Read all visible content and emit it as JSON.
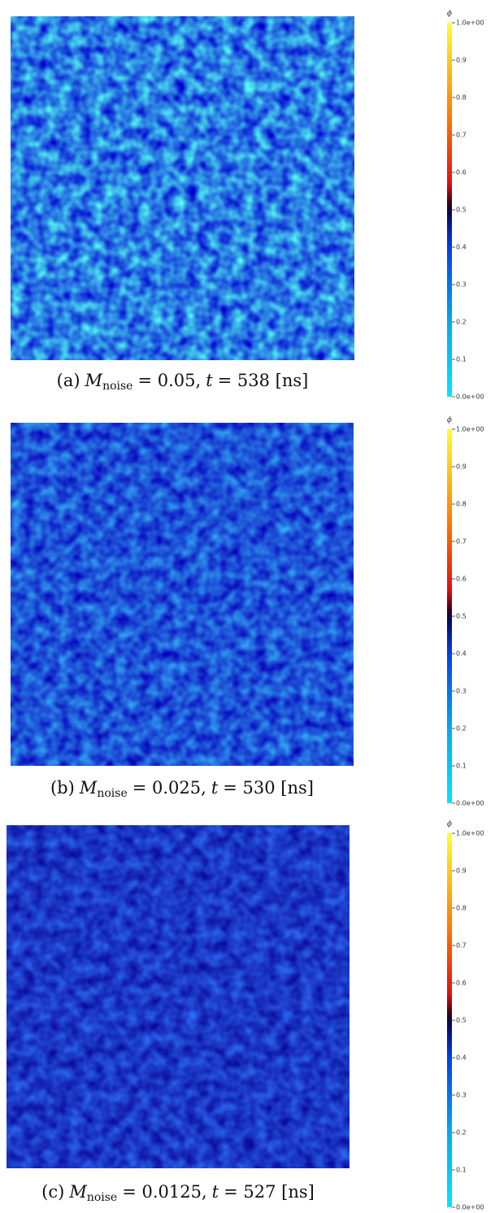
{
  "panels": [
    {
      "caption": {
        "label": "(a)",
        "var": "M",
        "sub": "noise",
        "rest": "= 0.05,",
        "var2": "t",
        "rest2": "= 538 [ns]"
      },
      "colorbar": {
        "title": "ϕ",
        "ticks": [
          {
            "value": 0,
            "label": "0.0e+00"
          },
          0.1,
          0.2,
          0.3,
          0.4,
          0.5,
          0.6,
          0.7,
          0.8,
          0.9,
          {
            "value": 1,
            "label": "1.0e+00"
          }
        ]
      }
    },
    {
      "caption": {
        "label": "(b)",
        "var": "M",
        "sub": "noise",
        "rest": "= 0.025,",
        "var2": "t",
        "rest2": "= 530 [ns]"
      },
      "colorbar": {
        "title": "ϕ",
        "ticks": [
          {
            "value": 0,
            "label": "0.0e+00"
          },
          0.1,
          0.2,
          0.3,
          0.4,
          0.5,
          0.6,
          0.7,
          0.8,
          0.9,
          {
            "value": 1,
            "label": "1.0e+00"
          }
        ]
      }
    },
    {
      "caption": {
        "label": "(c)",
        "var": "M",
        "sub": "noise",
        "rest": "= 0.0125,",
        "var2": "t",
        "rest2": "= 527 [ns]"
      },
      "colorbar": {
        "title": "ϕ",
        "ticks": [
          {
            "value": 0,
            "label": "0.0e+00"
          },
          0.1,
          0.2,
          0.3,
          0.4,
          0.5,
          0.6,
          0.7,
          0.8,
          0.9,
          {
            "value": 1,
            "label": "1.0e+00"
          }
        ]
      }
    }
  ]
}
